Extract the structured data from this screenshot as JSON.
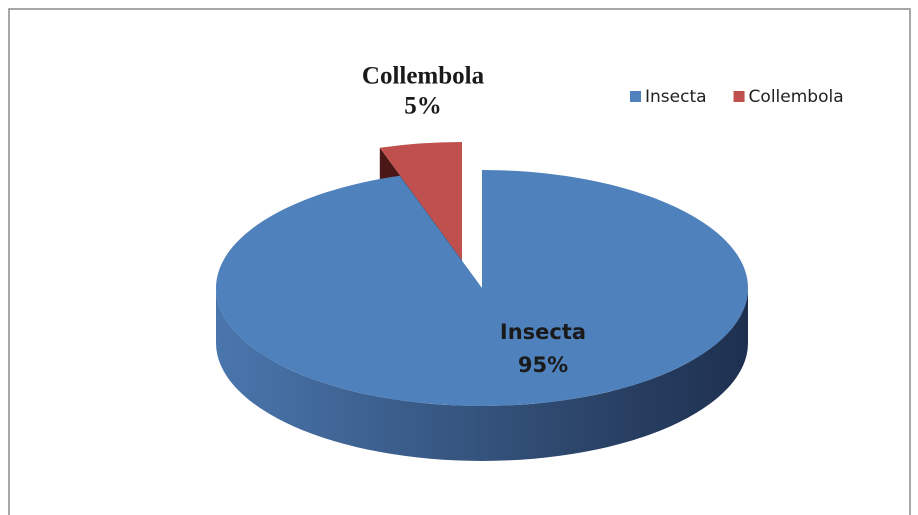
{
  "chart_data": {
    "type": "pie",
    "categories": [
      "Insecta",
      "Collembola"
    ],
    "values": [
      95,
      5
    ],
    "value_labels": [
      "95%",
      "5%"
    ],
    "colors": [
      "#4f81bd",
      "#c0504d"
    ],
    "legend": "top-right"
  }
}
